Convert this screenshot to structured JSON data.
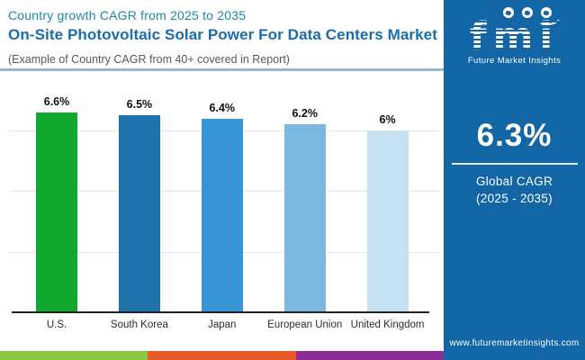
{
  "chart_data": {
    "type": "bar",
    "subtitle": "Country growth CAGR from 2025 to 2035",
    "title": "On-Site Photovoltaic Solar Power For Data Centers Market",
    "note": "(Example of Country CAGR from 40+ covered in Report)",
    "categories": [
      "U.S.",
      "South Korea",
      "Japan",
      "European Union",
      "United Kingdom"
    ],
    "values": [
      6.6,
      6.5,
      6.4,
      6.2,
      6
    ],
    "value_labels": [
      "6.6%",
      "6.5%",
      "6.4%",
      "6.2%",
      "6%"
    ],
    "bar_colors": [
      "#12a830",
      "#1f72ab",
      "#3795d5",
      "#7cb8e0",
      "#c6e1f2"
    ],
    "xlabel": "",
    "ylabel": "",
    "ylim": [
      0,
      7
    ],
    "grid": true,
    "gridline_values": [
      2,
      4,
      6
    ],
    "legend_position": "none"
  },
  "side_panel": {
    "logo_text": "fmi",
    "logo_subtext": "Future Market Insights",
    "global_cagr_value": "6.3%",
    "global_cagr_label_line1": "Global CAGR",
    "global_cagr_label_line2": "(2025 - 2035)",
    "website": "www.futuremarketinsights.com"
  },
  "footer_strip": {
    "colors": [
      "#8cc63e",
      "#e85b28",
      "#8c2d97"
    ]
  },
  "colors": {
    "panel-blue": "#1366a6",
    "title-color": "#1b6ca8",
    "subtitle-color": "#1e88ab",
    "note-color": "#585858",
    "divider-color": "#92b9c7",
    "gridline-color": "#e7e7e7",
    "axis-color": "#222222"
  }
}
